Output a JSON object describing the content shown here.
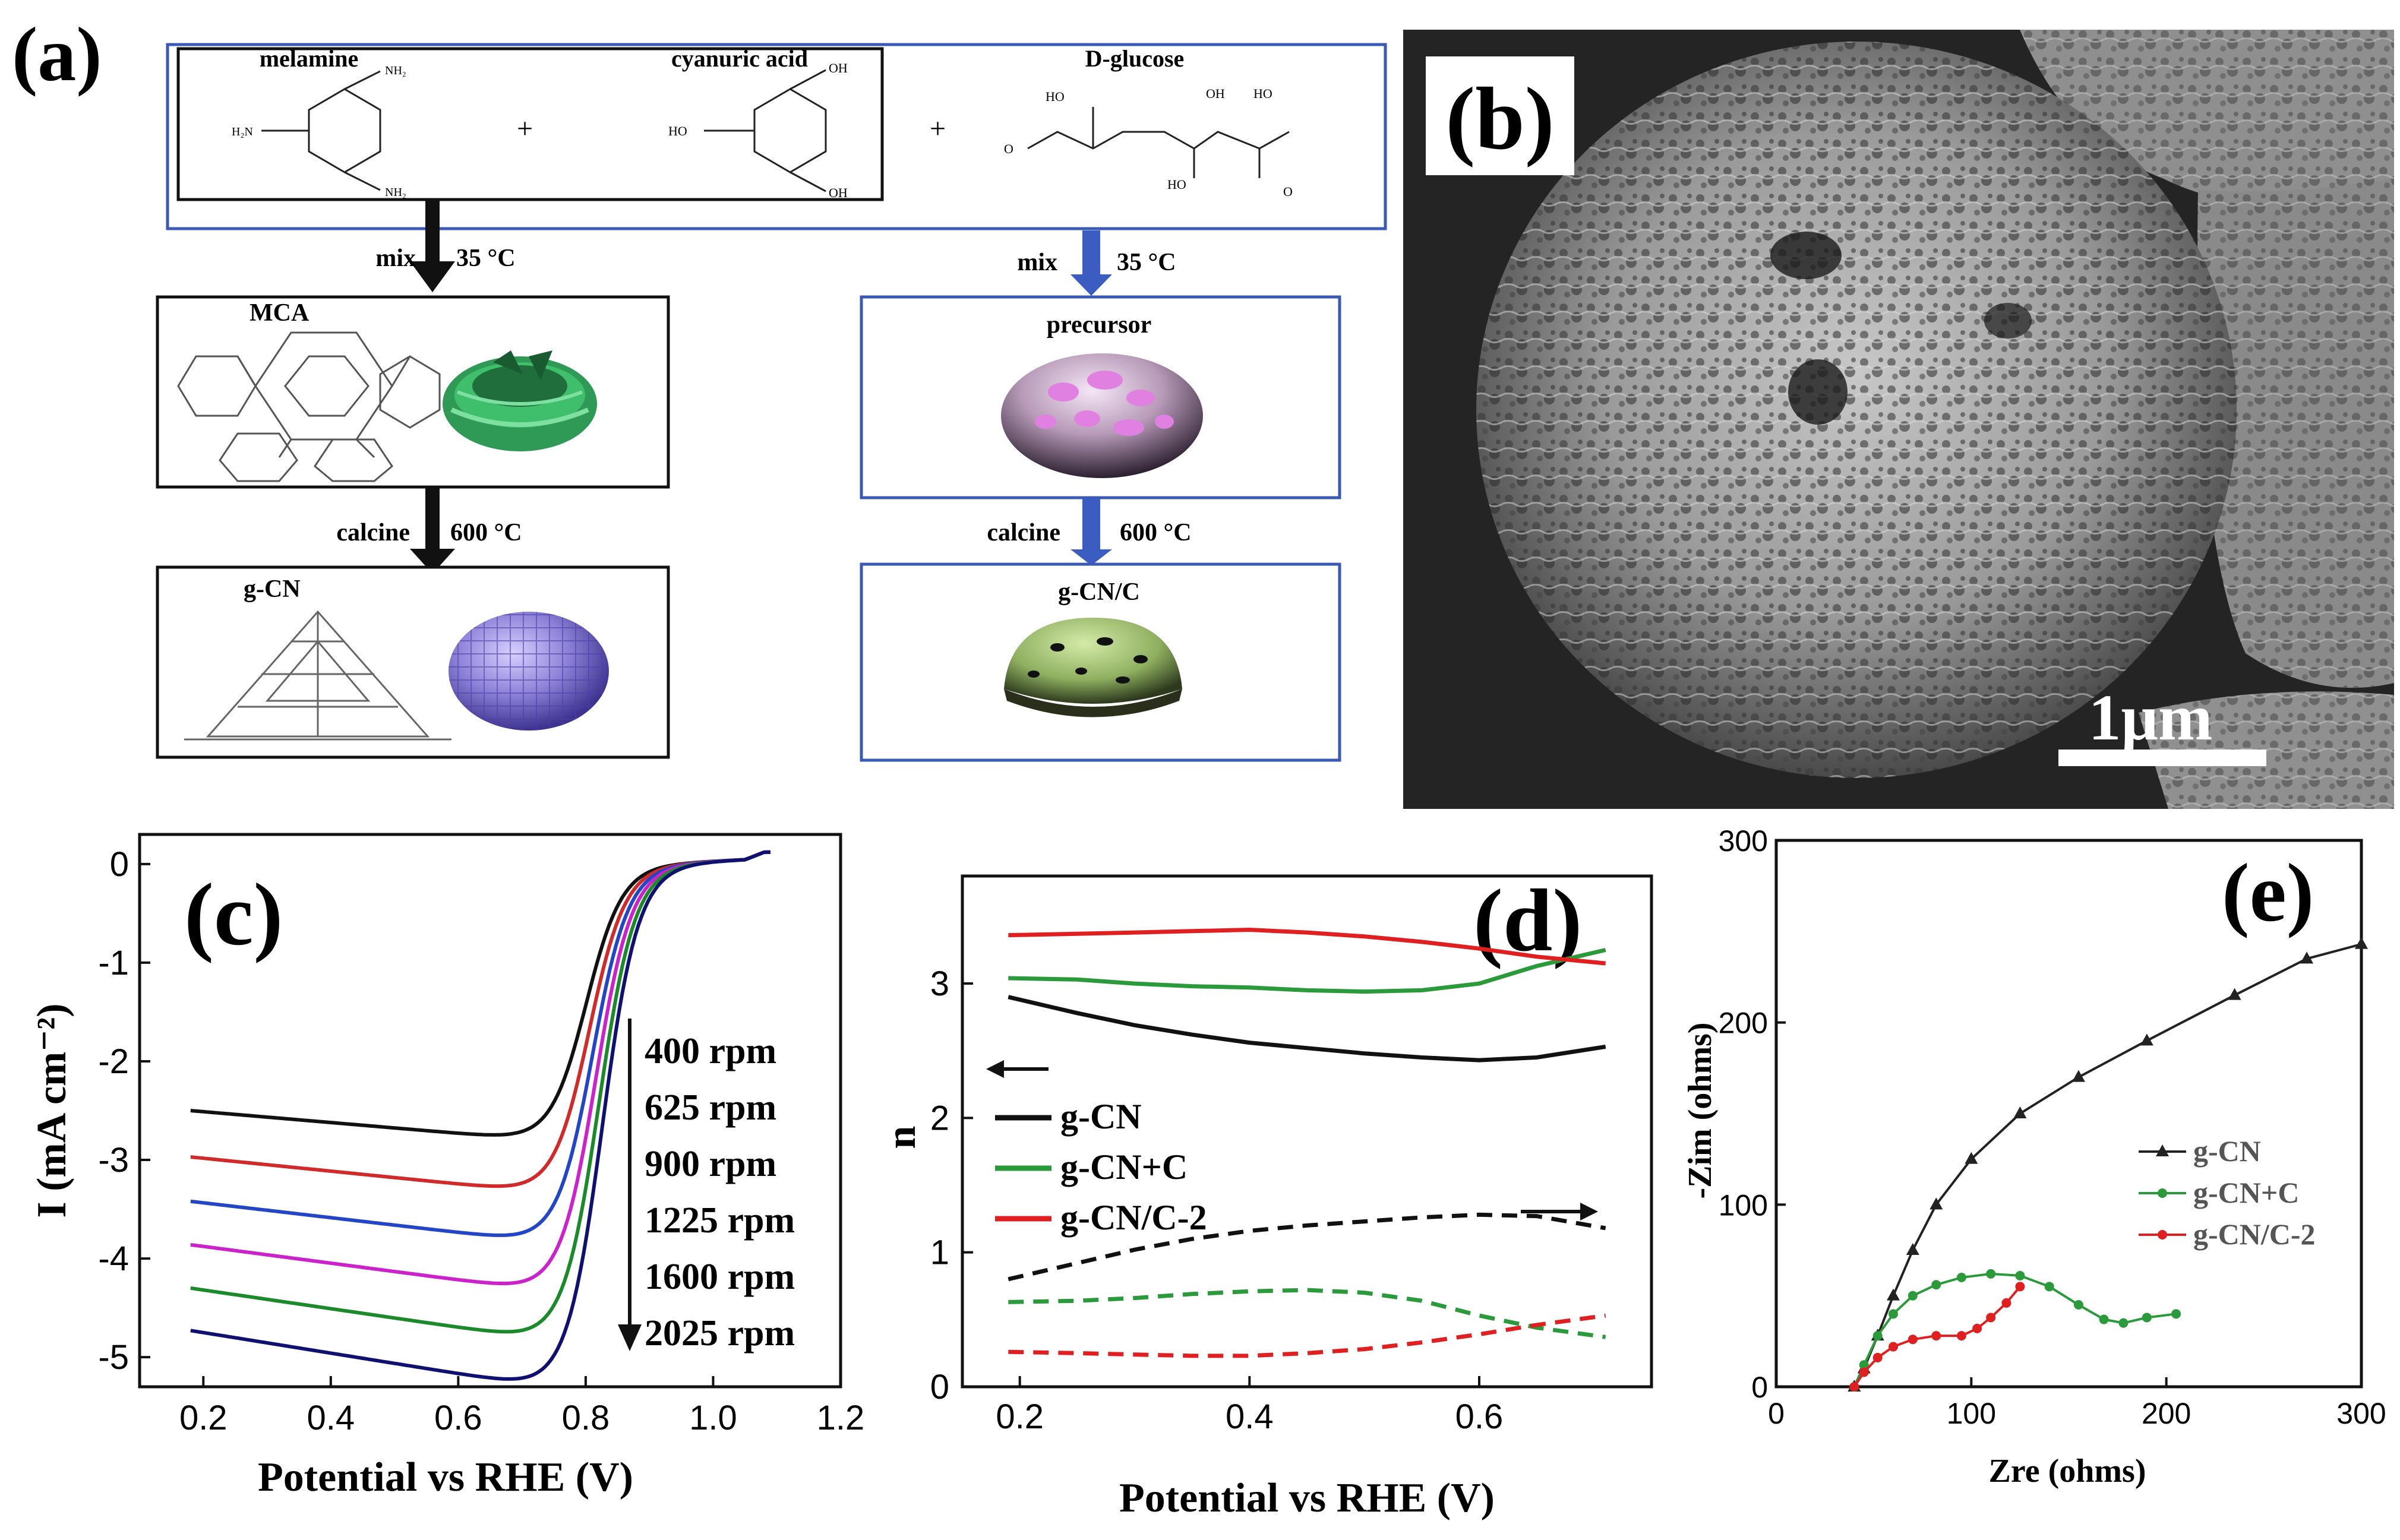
{
  "panel_a": {
    "label": "(a)",
    "reactants": [
      "melamine",
      "cyanuric acid",
      "D-glucose"
    ],
    "plus": "+",
    "substituents": {
      "melamine_top": "NH₂",
      "melamine_left": "H₂N",
      "melamine_bottom": "NH₂",
      "cya_top": "OH",
      "cya_left": "HO",
      "cya_bottom": "OH",
      "glu_ho1": "HO",
      "glu_oh": "OH",
      "glu_ho2": "HO",
      "glu_o": "O",
      "glu_ho3": "HO",
      "glu_o2": "O"
    },
    "left_steps": [
      {
        "left": "mix",
        "right": "35 °C"
      },
      {
        "left": "calcine",
        "right": "600 °C"
      }
    ],
    "right_steps": [
      {
        "left": "mix",
        "right": "35 °C"
      },
      {
        "left": "calcine",
        "right": "600 °C"
      }
    ],
    "boxes": {
      "mca": "MCA",
      "gcn": "g-CN",
      "precursor": "precursor",
      "gcnc": "g-CN/C"
    },
    "colors": {
      "blue_frame": "#3a58b5",
      "black_arrow": "#111111",
      "blue_arrow": "#3b5cc0"
    }
  },
  "panel_b": {
    "label": "(b)",
    "scalebar": "1μm"
  },
  "panel_c": {
    "label": "(c)",
    "chart_data": {
      "type": "line",
      "xlabel": "Potential vs RHE (V)",
      "ylabel": "I (mA cm⁻²)",
      "xlim": [
        0.1,
        1.2
      ],
      "ylim": [
        -5.3,
        0.3
      ],
      "xticks": [
        "0.2",
        "0.4",
        "0.6",
        "0.8",
        "1.0",
        "1.2"
      ],
      "yticks": [
        "0",
        "-1",
        "-2",
        "-3",
        "-4",
        "-5"
      ],
      "legend": [
        "400 rpm",
        "625 rpm",
        "900 rpm",
        "1225 rpm",
        "1600 rpm",
        "2025 rpm"
      ],
      "series": [
        {
          "name": "400 rpm",
          "color": "#111111",
          "plateau": -2.5,
          "e_half": 0.8
        },
        {
          "name": "625 rpm",
          "color": "#d02a2a",
          "plateau": -2.97,
          "e_half": 0.805
        },
        {
          "name": "900 rpm",
          "color": "#2345c8",
          "plateau": -3.42,
          "e_half": 0.81
        },
        {
          "name": "1225 rpm",
          "color": "#cc22cc",
          "plateau": -3.86,
          "e_half": 0.815
        },
        {
          "name": "1600 rpm",
          "color": "#1a8a2a",
          "plateau": -4.3,
          "e_half": 0.82
        },
        {
          "name": "2025 rpm",
          "color": "#101070",
          "plateau": -4.73,
          "e_half": 0.825
        }
      ]
    }
  },
  "panel_d": {
    "label": "(d)",
    "chart_data": {
      "type": "line",
      "xlabel": "Potential vs RHE (V)",
      "ylabel": "n",
      "xlim": [
        0.15,
        0.75
      ],
      "ylim": [
        0,
        3.8
      ],
      "xticks": [
        "0.2",
        "0.4",
        "0.6"
      ],
      "yticks": [
        "0",
        "1",
        "2",
        "3"
      ],
      "legend": [
        "g-CN",
        "g-CN+C",
        "g-CN/C-2"
      ],
      "arrows": {
        "left": "←",
        "right": "→"
      },
      "x": [
        0.19,
        0.25,
        0.3,
        0.35,
        0.4,
        0.45,
        0.5,
        0.55,
        0.6,
        0.65,
        0.71
      ],
      "series": [
        {
          "name": "g-CN",
          "style": "solid",
          "color": "#111111",
          "values": [
            2.9,
            2.78,
            2.69,
            2.62,
            2.56,
            2.52,
            2.48,
            2.45,
            2.43,
            2.45,
            2.53
          ]
        },
        {
          "name": "g-CN+C",
          "style": "solid",
          "color": "#2a9a3a",
          "values": [
            3.04,
            3.03,
            3.0,
            2.98,
            2.97,
            2.95,
            2.94,
            2.95,
            3.0,
            3.13,
            3.25
          ]
        },
        {
          "name": "g-CN/C-2",
          "style": "solid",
          "color": "#e02020",
          "values": [
            3.36,
            3.37,
            3.38,
            3.39,
            3.4,
            3.38,
            3.35,
            3.31,
            3.26,
            3.2,
            3.15
          ]
        },
        {
          "name": "g-CN",
          "style": "dashed",
          "color": "#111111",
          "values": [
            0.8,
            0.92,
            1.02,
            1.1,
            1.16,
            1.2,
            1.23,
            1.26,
            1.28,
            1.27,
            1.18
          ]
        },
        {
          "name": "g-CN+C",
          "style": "dashed",
          "color": "#2a9a3a",
          "values": [
            0.63,
            0.64,
            0.66,
            0.69,
            0.71,
            0.72,
            0.7,
            0.64,
            0.53,
            0.44,
            0.37
          ]
        },
        {
          "name": "g-CN/C-2",
          "style": "dashed",
          "color": "#e02020",
          "values": [
            0.26,
            0.25,
            0.24,
            0.23,
            0.23,
            0.25,
            0.28,
            0.33,
            0.39,
            0.46,
            0.53
          ]
        }
      ]
    }
  },
  "panel_e": {
    "label": "(e)",
    "chart_data": {
      "type": "scatter",
      "xlabel": "Zre (ohms)",
      "ylabel": "-Zim (ohms)",
      "xlim": [
        0,
        300
      ],
      "ylim": [
        0,
        300
      ],
      "xticks": [
        "0",
        "100",
        "200",
        "300"
      ],
      "yticks": [
        "0",
        "100",
        "200",
        "300"
      ],
      "legend": [
        "g-CN",
        "g-CN+C",
        "g-CN/C-2"
      ],
      "series": [
        {
          "name": "g-CN",
          "marker": "triangle",
          "color": "#222222",
          "x": [
            40,
            45,
            52,
            60,
            70,
            82,
            100,
            125,
            155,
            190,
            235,
            272,
            300
          ],
          "y": [
            0,
            10,
            28,
            50,
            75,
            100,
            125,
            150,
            170,
            190,
            215,
            235,
            243
          ]
        },
        {
          "name": "g-CN+C",
          "marker": "circle",
          "color": "#2a9a3a",
          "x": [
            40,
            45,
            52,
            60,
            70,
            82,
            95,
            110,
            125,
            140,
            155,
            168,
            178,
            190,
            205
          ],
          "y": [
            0,
            12,
            28,
            40,
            50,
            56,
            60,
            62,
            61,
            55,
            45,
            37,
            35,
            38,
            40
          ]
        },
        {
          "name": "g-CN/C-2",
          "marker": "circle",
          "color": "#e02020",
          "x": [
            40,
            45,
            52,
            60,
            70,
            82,
            95,
            103,
            110,
            118,
            125
          ],
          "y": [
            0,
            8,
            16,
            22,
            26,
            28,
            28,
            32,
            38,
            46,
            55
          ]
        }
      ]
    }
  }
}
